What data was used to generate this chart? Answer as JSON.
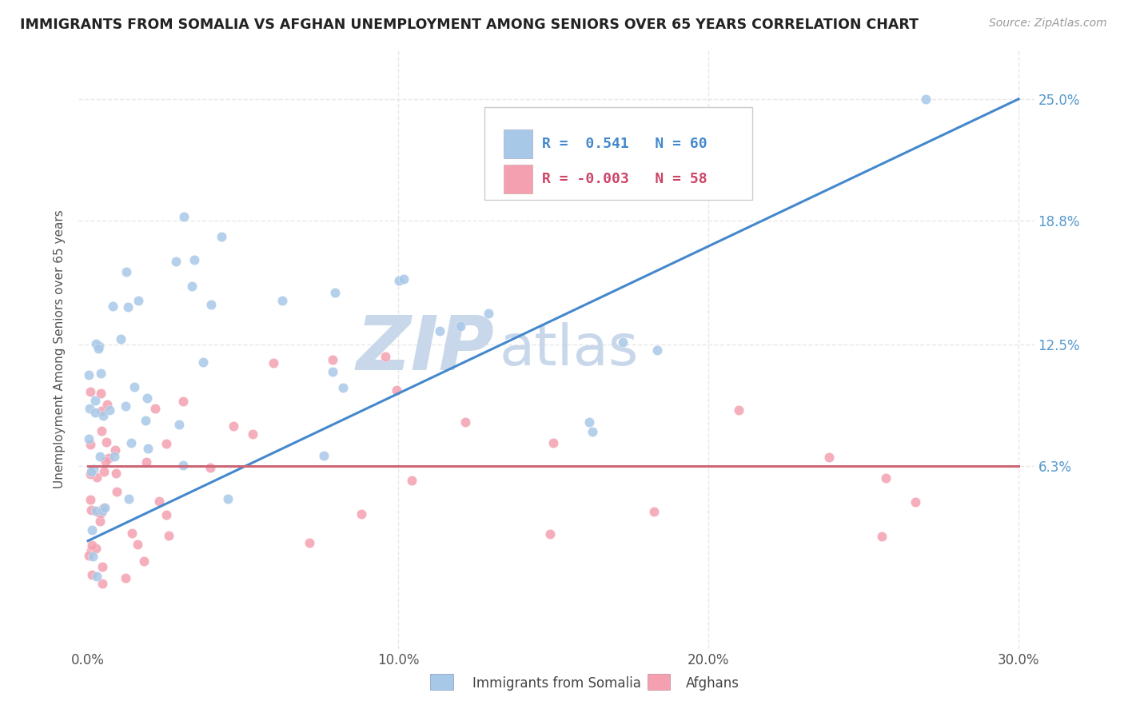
{
  "title": "IMMIGRANTS FROM SOMALIA VS AFGHAN UNEMPLOYMENT AMONG SENIORS OVER 65 YEARS CORRELATION CHART",
  "source": "Source: ZipAtlas.com",
  "xlabel_somalia": "Immigrants from Somalia",
  "xlabel_afghans": "Afghans",
  "ylabel": "Unemployment Among Seniors over 65 years",
  "xlim": [
    -0.003,
    0.305
  ],
  "ylim": [
    -0.03,
    0.275
  ],
  "ytick_vals": [
    0.063,
    0.125,
    0.188,
    0.25
  ],
  "ytick_labels": [
    "6.3%",
    "12.5%",
    "18.8%",
    "25.0%"
  ],
  "xtick_vals": [
    0.0,
    0.1,
    0.2,
    0.3
  ],
  "xtick_labels": [
    "0.0%",
    "10.0%",
    "20.0%",
    "30.0%"
  ],
  "r_somalia": 0.541,
  "n_somalia": 60,
  "r_afghans": -0.003,
  "n_afghans": 58,
  "color_somalia": "#a8c8e8",
  "color_afghans": "#f4a0b0",
  "trend_color_somalia": "#4488cc",
  "trend_color_afghans": "#cc6677",
  "watermark_zip": "ZIP",
  "watermark_atlas": "atlas",
  "watermark_color": "#c8d8ea",
  "background_color": "#ffffff",
  "grid_color": "#e8e8e8",
  "somalia_trend_x0": 0.0,
  "somalia_trend_y0": 0.025,
  "somalia_trend_x1": 0.3,
  "somalia_trend_y1": 0.25,
  "afghans_trend_x0": 0.0,
  "afghans_trend_y0": 0.063,
  "afghans_trend_x1": 0.3,
  "afghans_trend_y1": 0.063
}
